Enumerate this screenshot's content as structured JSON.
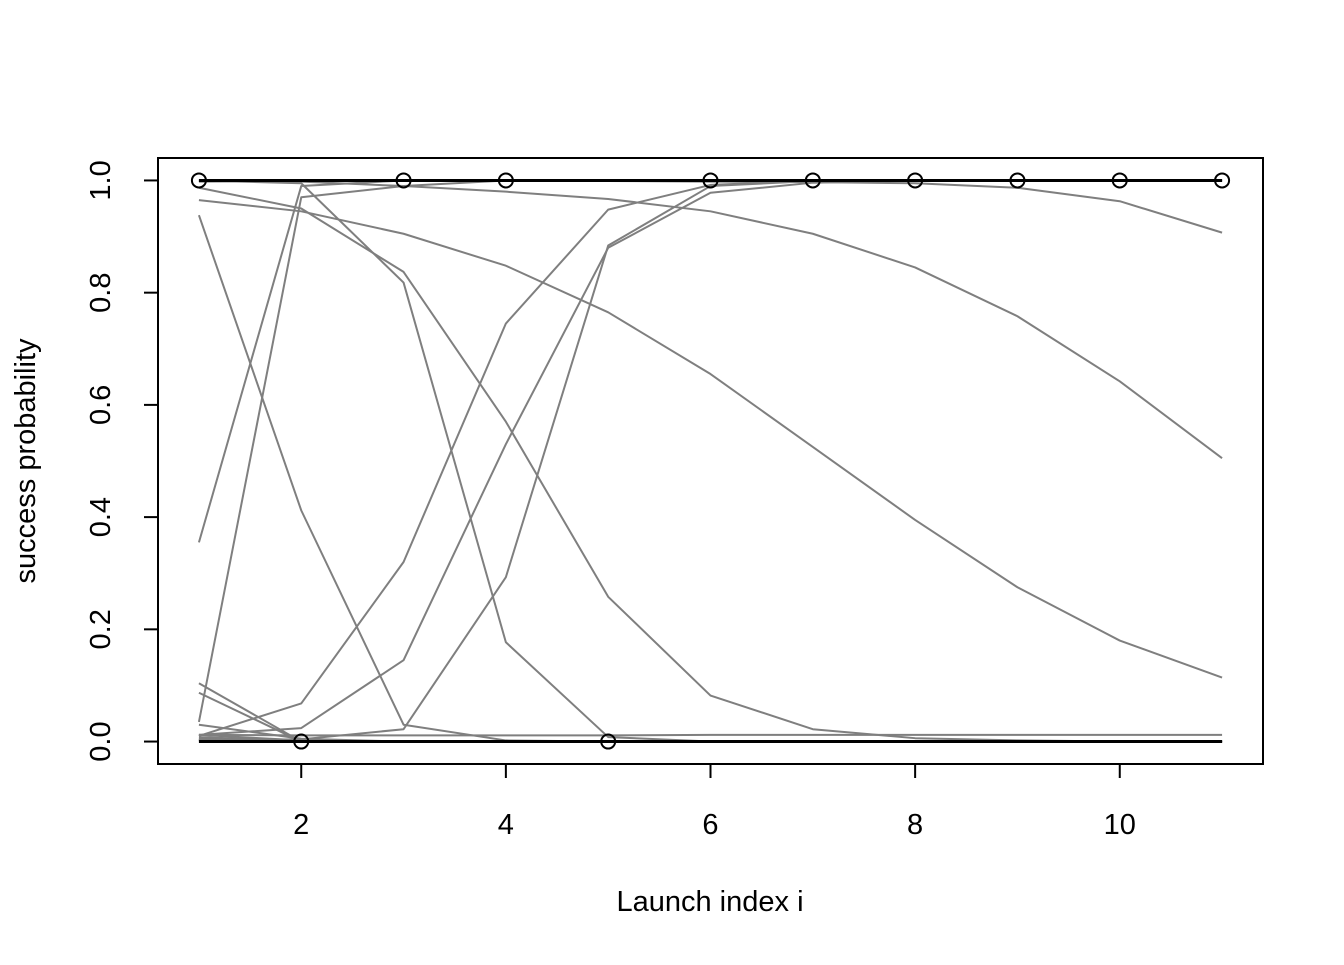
{
  "chart_data": {
    "type": "line",
    "title": "",
    "xlabel": "Launch index i",
    "ylabel": "success probability",
    "xlim": [
      0.6,
      11.4
    ],
    "ylim": [
      -0.04,
      1.04
    ],
    "xticks": [
      2,
      4,
      6,
      8,
      10
    ],
    "yticks": [
      0.0,
      0.2,
      0.4,
      0.6,
      0.8,
      1.0
    ],
    "xtick_labels": [
      "2",
      "4",
      "6",
      "8",
      "10"
    ],
    "ytick_labels": [
      "0.0",
      "0.2",
      "0.4",
      "0.6",
      "0.8",
      "1.0"
    ],
    "grid": false,
    "legend": "none",
    "x": [
      1,
      2,
      3,
      4,
      5,
      6,
      7,
      8,
      9,
      10,
      11
    ],
    "series_color": "#7f7f7f",
    "reference_color": "#000000",
    "series": [
      {
        "values": [
          0.035,
          0.97,
          0.99,
          1.0,
          1.0,
          1.0,
          1.0,
          1.0,
          1.0,
          1.0,
          1.0
        ]
      },
      {
        "values": [
          0.355,
          0.99,
          1.0,
          1.0,
          1.0,
          1.0,
          1.0,
          1.0,
          1.0,
          1.0,
          1.0
        ]
      },
      {
        "values": [
          0.938,
          0.412,
          0.03,
          0.002,
          0.0,
          0.0,
          0.0,
          0.0,
          0.0,
          0.0,
          0.0
        ]
      },
      {
        "values": [
          0.987,
          0.95,
          0.837,
          0.57,
          0.258,
          0.082,
          0.022,
          0.006,
          0.002,
          0.0,
          0.0
        ]
      },
      {
        "values": [
          0.965,
          0.945,
          0.905,
          0.848,
          0.765,
          0.655,
          0.525,
          0.395,
          0.275,
          0.18,
          0.114
        ]
      },
      {
        "values": [
          1.0,
          0.998,
          0.99,
          0.98,
          0.967,
          0.945,
          0.905,
          0.845,
          0.758,
          0.642,
          0.505
        ]
      },
      {
        "values": [
          0.998,
          0.999,
          0.999,
          0.999,
          0.999,
          0.998,
          0.997,
          0.995,
          0.987,
          0.963,
          0.907
        ]
      },
      {
        "values": [
          1.0,
          0.995,
          0.818,
          0.177,
          0.008,
          0.0,
          0.0,
          0.0,
          0.0,
          0.0,
          0.0
        ]
      },
      {
        "values": [
          0.01,
          0.068,
          0.32,
          0.745,
          0.948,
          0.992,
          0.999,
          1.0,
          1.0,
          1.0,
          1.0
        ]
      },
      {
        "values": [
          0.012,
          0.024,
          0.145,
          0.53,
          0.88,
          0.978,
          0.996,
          1.0,
          1.0,
          1.0,
          1.0
        ]
      },
      {
        "values": [
          0.002,
          0.004,
          0.022,
          0.293,
          0.884,
          0.99,
          0.999,
          1.0,
          1.0,
          1.0,
          1.0
        ]
      },
      {
        "values": [
          0.104,
          0.0,
          0.0,
          0.0,
          0.0,
          0.0,
          0.0,
          0.0,
          0.0,
          0.0,
          0.0
        ]
      },
      {
        "values": [
          0.087,
          0.0,
          0.0,
          0.0,
          0.0,
          0.0,
          0.0,
          0.0,
          0.0,
          0.0,
          0.0
        ]
      },
      {
        "values": [
          0.03,
          0.005,
          0.0,
          0.0,
          0.0,
          0.0,
          0.0,
          0.0,
          0.0,
          0.0,
          0.0
        ]
      },
      {
        "values": [
          0.012,
          0.002,
          0.0,
          0.0,
          0.0,
          0.0,
          0.0,
          0.0,
          0.0,
          0.0,
          0.0
        ]
      },
      {
        "values": [
          0.008,
          0.001,
          0.0,
          0.0,
          0.0,
          0.0,
          0.0,
          0.0,
          0.0,
          0.0,
          0.0
        ]
      },
      {
        "values": [
          0.005,
          0.0,
          0.0,
          0.0,
          0.0,
          0.0,
          0.0,
          0.0,
          0.0,
          0.0,
          0.0
        ]
      },
      {
        "values": [
          0.004,
          0.0,
          0.0,
          0.0,
          0.0,
          0.0,
          0.0,
          0.0,
          0.0,
          0.0,
          0.0
        ]
      },
      {
        "values": [
          0.003,
          0.0,
          0.0,
          0.0,
          0.0,
          0.0,
          0.0,
          0.0,
          0.0,
          0.0,
          0.0
        ]
      },
      {
        "values": [
          0.002,
          0.0,
          0.0,
          0.0,
          0.0,
          0.0,
          0.0,
          0.0,
          0.0,
          0.0,
          0.0
        ]
      },
      {
        "values": [
          0.012,
          0.011,
          0.011,
          0.011,
          0.011,
          0.012,
          0.012,
          0.012,
          0.012,
          0.012,
          0.012
        ]
      }
    ],
    "reference_lines": [
      {
        "values": [
          1,
          1,
          1,
          1,
          1,
          1,
          1,
          1,
          1,
          1,
          1
        ]
      },
      {
        "values": [
          0,
          0,
          0,
          0,
          0,
          0,
          0,
          0,
          0,
          0,
          0
        ]
      }
    ],
    "observed_points": {
      "x": [
        1,
        2,
        3,
        4,
        5,
        6,
        7,
        8,
        9,
        10,
        11
      ],
      "y": [
        1,
        0,
        1,
        1,
        0,
        1,
        1,
        1,
        1,
        1,
        1
      ]
    }
  }
}
